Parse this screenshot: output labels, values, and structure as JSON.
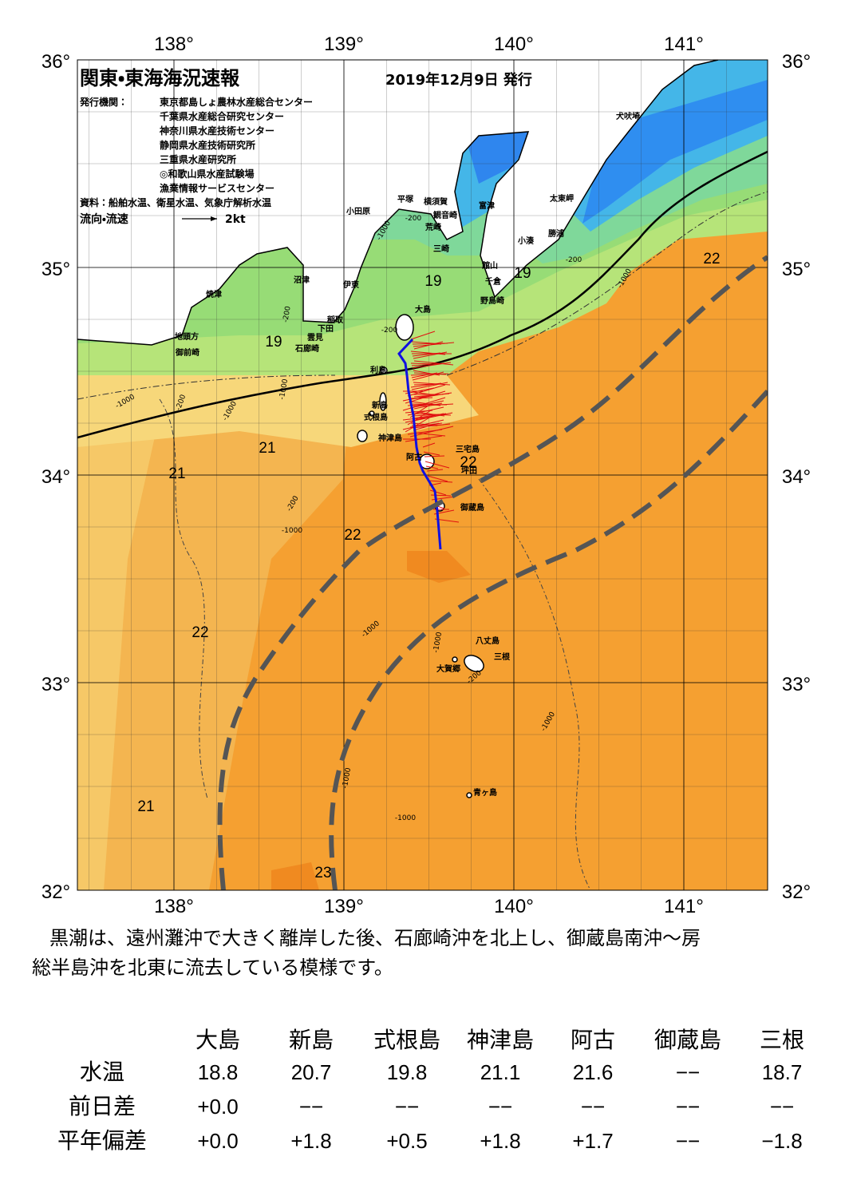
{
  "header": {
    "title": "関東・東海海況速報",
    "date": "2019年12月9日 発行"
  },
  "issuers": {
    "label": "発行機関：",
    "names": [
      "東京都島しょ農林水産総合センター",
      "千葉県水産総合研究センター",
      "神奈川県水産技術センター",
      "静岡県水産技術研究所",
      "三重県水産研究所",
      "◎和歌山県水産試験場",
      "漁業情報サービスセンター"
    ]
  },
  "source": "資料：船舶水温、衛星水温、気象庁解析水温",
  "legend": {
    "label": "流向・流速",
    "speed": "2kt"
  },
  "map": {
    "lon_ticks": [
      {
        "value": 138,
        "label": "138°"
      },
      {
        "value": 139,
        "label": "139°"
      },
      {
        "value": 140,
        "label": "140°"
      },
      {
        "value": 141,
        "label": "141°"
      }
    ],
    "lat_ticks": [
      {
        "value": 36,
        "label": "36°"
      },
      {
        "value": 35,
        "label": "35°"
      },
      {
        "value": 34,
        "label": "34°"
      },
      {
        "value": 33,
        "label": "33°"
      },
      {
        "value": 32,
        "label": "32°"
      }
    ],
    "places": [
      "小田原",
      "平塚",
      "横須賀",
      "観音崎",
      "富津",
      "荒崎",
      "三崎",
      "太東岬",
      "勝浦",
      "小湊",
      "館山",
      "千倉",
      "野島崎",
      "沼津",
      "伊東",
      "焼津",
      "稲取",
      "下田",
      "雲見",
      "石廊崎",
      "地頭方",
      "御前崎",
      "大島",
      "利島",
      "新島",
      "式根島",
      "神津島",
      "三宅島",
      "阿古",
      "坪田",
      "御蔵島",
      "八丈島",
      "三根",
      "大賀郷",
      "青ヶ島",
      "犬吠埼"
    ],
    "temp_labels": [
      22,
      19,
      19,
      19,
      21,
      21,
      22,
      22,
      22,
      21,
      23
    ],
    "depth_labels": [
      "-1000",
      "-200",
      "-200",
      "-1000",
      "-1000",
      "-200",
      "-1000",
      "-200",
      "-200",
      "-1000",
      "-1000",
      "-200",
      "-1000",
      "-1000",
      "-200",
      "-1000",
      "-1000",
      "-1000"
    ]
  },
  "description": [
    "黒潮は、遠州灘沖で大きく離岸した後、石廊崎沖を北上し、御蔵島南沖～房",
    "総半島沖を北東に流去している模様です。"
  ],
  "table": {
    "columns": [
      "大島",
      "新島",
      "式根島",
      "神津島",
      "阿古",
      "御蔵島",
      "三根"
    ],
    "rows": [
      {
        "label": "水温",
        "values": [
          "18.8",
          "20.7",
          "19.8",
          "21.1",
          "21.6",
          "−−",
          "18.7"
        ]
      },
      {
        "label": "前日差",
        "values": [
          "+0.0",
          "−−",
          "−−",
          "−−",
          "−−",
          "−−",
          "−−"
        ]
      },
      {
        "label": "平年偏差",
        "values": [
          "+0.0",
          "+1.8",
          "+0.5",
          "+1.8",
          "+1.7",
          "−−",
          "−1.8"
        ]
      }
    ]
  }
}
